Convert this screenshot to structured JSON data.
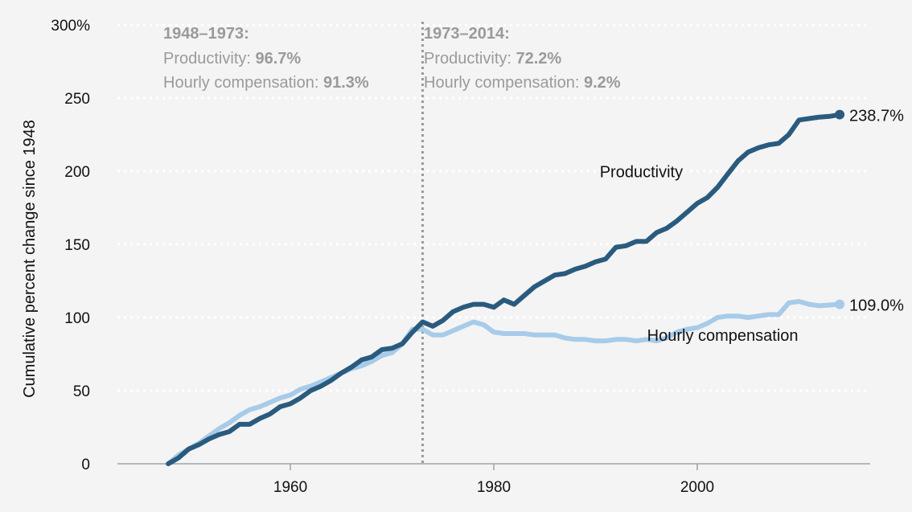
{
  "chart_data": {
    "type": "line",
    "title": "",
    "xlabel": "",
    "ylabel": "Cumulative percent change since 1948",
    "xlim": [
      1943,
      2017
    ],
    "ylim": [
      0,
      300
    ],
    "x_ticks": [
      "1960",
      "1980",
      "2000"
    ],
    "x_tick_values": [
      1960,
      1980,
      2000
    ],
    "y_ticks": [
      "0",
      "50",
      "100",
      "150",
      "200",
      "250",
      "300%"
    ],
    "y_tick_values": [
      0,
      50,
      100,
      150,
      200,
      250,
      300
    ],
    "grid": true,
    "divider_year": 1973,
    "annotations": [
      {
        "header": "1948–1973:",
        "productivity_label": "Productivity:",
        "productivity_value": "96.7%",
        "compensation_label": "Hourly compensation:",
        "compensation_value": "91.3%"
      },
      {
        "header": "1973–2014:",
        "productivity_label": "Productivity:",
        "productivity_value": "72.2%",
        "compensation_label": "Hourly compensation:",
        "compensation_value": "9.2%"
      }
    ],
    "series": [
      {
        "name": "Productivity",
        "color": "#2a5b7e",
        "end_label": "238.7%",
        "x": [
          1948,
          1949,
          1950,
          1951,
          1952,
          1953,
          1954,
          1955,
          1956,
          1957,
          1958,
          1959,
          1960,
          1961,
          1962,
          1963,
          1964,
          1965,
          1966,
          1967,
          1968,
          1969,
          1970,
          1971,
          1972,
          1973,
          1974,
          1975,
          1976,
          1977,
          1978,
          1979,
          1980,
          1981,
          1982,
          1983,
          1984,
          1985,
          1986,
          1987,
          1988,
          1989,
          1990,
          1991,
          1992,
          1993,
          1994,
          1995,
          1996,
          1997,
          1998,
          1999,
          2000,
          2001,
          2002,
          2003,
          2004,
          2005,
          2006,
          2007,
          2008,
          2009,
          2010,
          2011,
          2012,
          2013,
          2014
        ],
        "values": [
          0,
          4,
          10,
          13,
          17,
          20,
          22,
          27,
          27,
          31,
          34,
          39,
          41,
          45,
          50,
          53,
          57,
          62,
          66,
          71,
          73,
          78,
          79,
          82,
          90,
          97,
          94,
          98,
          104,
          107,
          109,
          109,
          107,
          112,
          109,
          115,
          121,
          125,
          129,
          130,
          133,
          135,
          138,
          140,
          148,
          149,
          152,
          152,
          158,
          161,
          166,
          172,
          178,
          182,
          189,
          198,
          207,
          213,
          216,
          218,
          219,
          225,
          235,
          236,
          237,
          237.5,
          238.7
        ]
      },
      {
        "name": "Hourly compensation",
        "color": "#a7cbe9",
        "end_label": "109.0%",
        "x": [
          1948,
          1949,
          1950,
          1951,
          1952,
          1953,
          1954,
          1955,
          1956,
          1957,
          1958,
          1959,
          1960,
          1961,
          1962,
          1963,
          1964,
          1965,
          1966,
          1967,
          1968,
          1969,
          1970,
          1971,
          1972,
          1973,
          1974,
          1975,
          1976,
          1977,
          1978,
          1979,
          1980,
          1981,
          1982,
          1983,
          1984,
          1985,
          1986,
          1987,
          1988,
          1989,
          1990,
          1991,
          1992,
          1993,
          1994,
          1995,
          1996,
          1997,
          1998,
          1999,
          2000,
          2001,
          2002,
          2003,
          2004,
          2005,
          2006,
          2007,
          2008,
          2009,
          2010,
          2011,
          2012,
          2013,
          2014
        ],
        "values": [
          0,
          6,
          10,
          14,
          19,
          24,
          28,
          33,
          37,
          39,
          42,
          45,
          47,
          51,
          53,
          56,
          59,
          62,
          65,
          67,
          70,
          74,
          76,
          82,
          92,
          92,
          88,
          88,
          91,
          94,
          97,
          95,
          90,
          89,
          89,
          89,
          88,
          88,
          88,
          86,
          85,
          85,
          84,
          84,
          85,
          85,
          84,
          85,
          84,
          86,
          90,
          92,
          93,
          96,
          100,
          101,
          101,
          100,
          101,
          102,
          102,
          110,
          111,
          109,
          108,
          108.5,
          109.0
        ]
      }
    ],
    "series_labels": [
      {
        "name": "Productivity",
        "at_year": 1994.5,
        "at_value": 196
      },
      {
        "name": "Hourly compensation",
        "at_year": 2002.5,
        "at_value": 84
      }
    ]
  }
}
